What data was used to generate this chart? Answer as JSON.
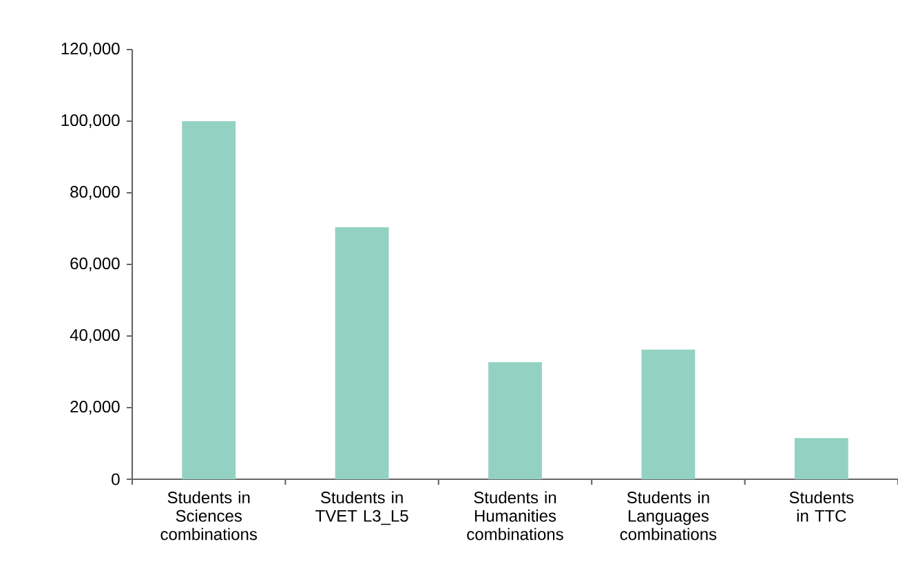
{
  "chart_data": {
    "type": "bar",
    "categories": [
      "Students in Sciences combinations",
      "Students in TVET L3_L5",
      "Students in Humanities combinations",
      "Students in Languages combinations",
      "Students in TTC"
    ],
    "values": [
      100000,
      70400,
      32700,
      36200,
      11500
    ],
    "color": "#93d2c2",
    "ylim": [
      0,
      120000
    ],
    "yticks": [
      {
        "value": 0,
        "label": "0"
      },
      {
        "value": 20000,
        "label": "20,000"
      },
      {
        "value": 40000,
        "label": "40,000"
      },
      {
        "value": 60000,
        "label": "60,000"
      },
      {
        "value": 80000,
        "label": "80,000"
      },
      {
        "value": 100000,
        "label": "100,000"
      },
      {
        "value": 120000,
        "label": "120,000"
      }
    ],
    "grid": false
  }
}
